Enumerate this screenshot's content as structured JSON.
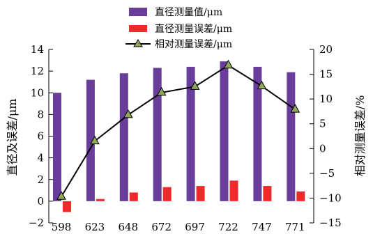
{
  "chart_data": {
    "type": "bar",
    "categories": [
      "598",
      "623",
      "648",
      "672",
      "697",
      "722",
      "747",
      "771"
    ],
    "series": [
      {
        "name": "直径测量值/μm",
        "type": "bar",
        "axis": "left",
        "color": "#6a3d9a",
        "values": [
          10.0,
          11.2,
          11.8,
          12.3,
          12.4,
          12.9,
          12.4,
          11.9
        ]
      },
      {
        "name": "直径测量误差/μm",
        "type": "bar",
        "axis": "left",
        "color": "#ee2a2a",
        "values": [
          -1.0,
          0.2,
          0.8,
          1.3,
          1.4,
          1.9,
          1.4,
          0.9
        ]
      },
      {
        "name": "相对测量误差/μm",
        "type": "line",
        "axis": "right",
        "color": "#000000",
        "marker_color": "#8fa85a",
        "values": [
          -9.7,
          1.5,
          6.8,
          11.3,
          12.5,
          16.8,
          12.6,
          7.9
        ]
      }
    ],
    "ylabel": "直径及误差/μm",
    "y2label": "相对测量误差/%",
    "ylim": [
      -2,
      14
    ],
    "y2lim": [
      -15,
      20
    ],
    "yticks": [
      "−2",
      "0",
      "2",
      "4",
      "6",
      "8",
      "10",
      "12",
      "14"
    ],
    "y2ticks": [
      "−15",
      "−10",
      "−5",
      "0",
      "5",
      "10",
      "15",
      "20"
    ],
    "legend_position": "top-center",
    "grid": false
  }
}
